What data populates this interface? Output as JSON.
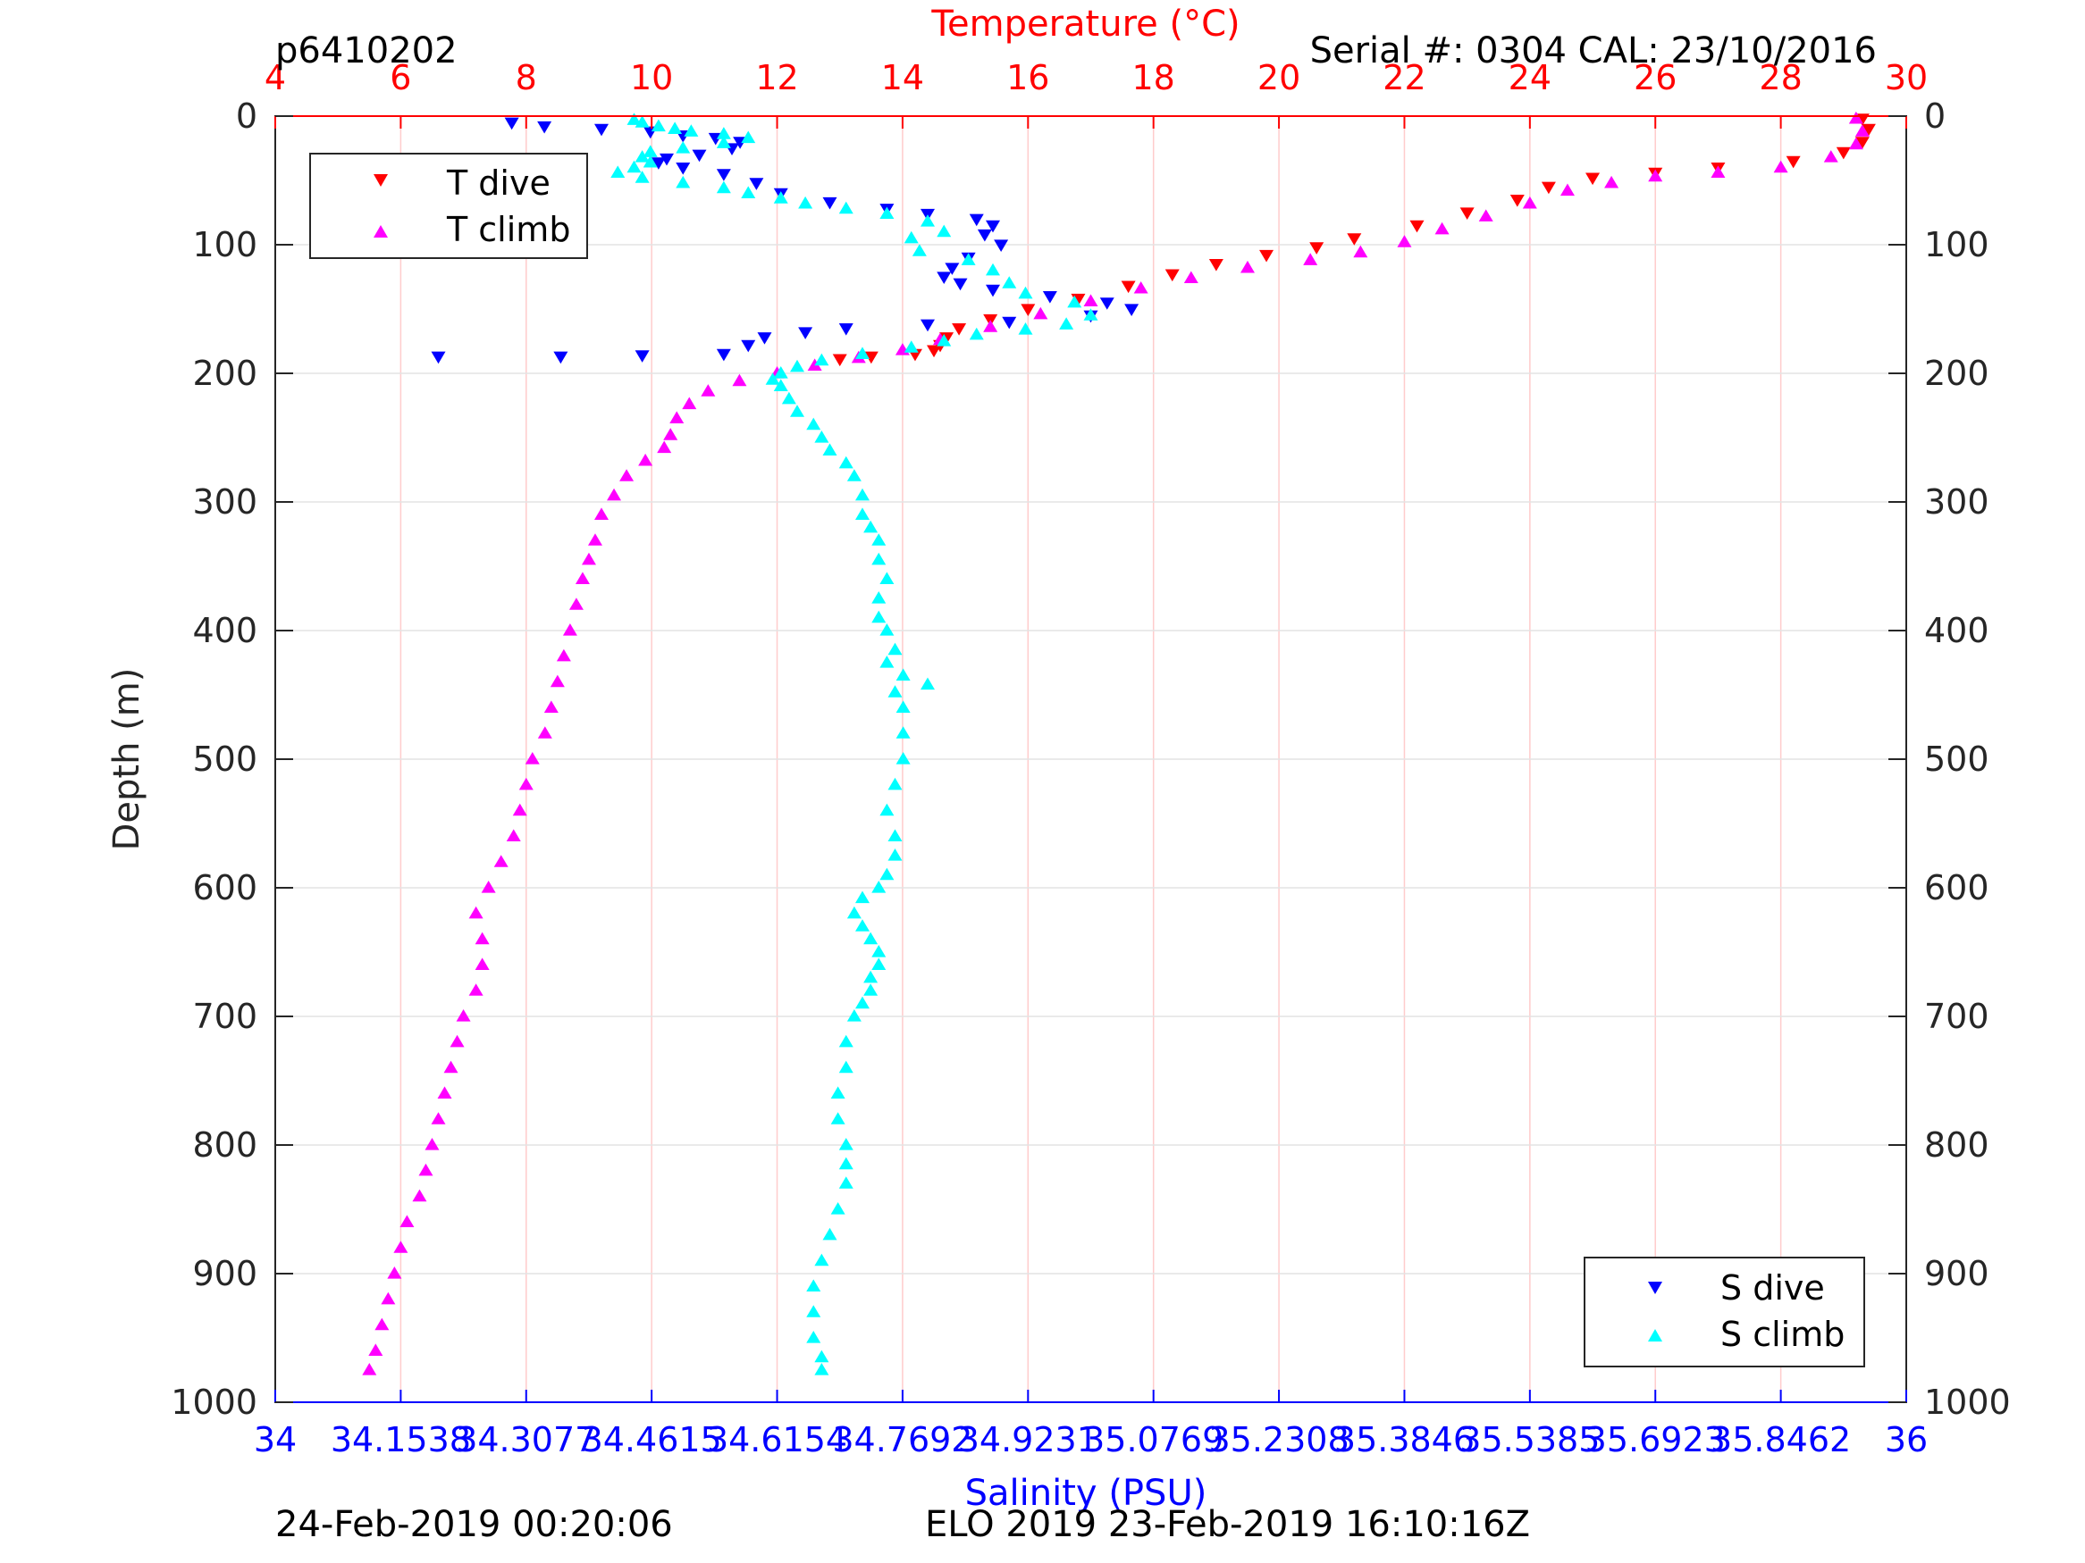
{
  "header": {
    "profile_id": "p6410202",
    "serial": "Serial #: 0304  CAL: 23/10/2016",
    "footer_left": "24-Feb-2019 00:20:06",
    "footer_right": "ELO 2019 23-Feb-2019 16:10:16Z"
  },
  "colors": {
    "t_dive": "#ff0000",
    "t_climb": "#ff00ff",
    "s_dive": "#0000ff",
    "s_climb": "#00ffff",
    "temp_axis": "#ff0000",
    "sal_axis": "#0000ff"
  },
  "chart_data": {
    "type": "scatter",
    "title": "",
    "ylabel": "Depth (m)",
    "ylim": [
      1000,
      0
    ],
    "y_reversed": true,
    "y_ticks": [
      "0",
      "100",
      "200",
      "300",
      "400",
      "500",
      "600",
      "700",
      "800",
      "900",
      "1000"
    ],
    "top_axis": {
      "label": "Temperature (°C)",
      "range": [
        4,
        30
      ],
      "ticks": [
        "4",
        "6",
        "8",
        "10",
        "12",
        "14",
        "16",
        "18",
        "20",
        "22",
        "24",
        "26",
        "28",
        "30"
      ]
    },
    "bottom_axis": {
      "label": "Salinity (PSU)",
      "range": [
        34,
        36
      ],
      "ticks": [
        "34",
        "34.1538",
        "34.3077",
        "34.4615",
        "34.6154",
        "34.7692",
        "34.9231",
        "35.0769",
        "35.2308",
        "35.3846",
        "35.5385",
        "35.6923",
        "35.8462",
        "36"
      ]
    },
    "grid": "vertical",
    "legends": [
      {
        "position": "top-left",
        "entries": [
          "T dive",
          "T climb"
        ]
      },
      {
        "position": "bottom-right",
        "entries": [
          "S dive",
          "S climb"
        ]
      }
    ],
    "series": [
      {
        "name": "T dive",
        "axis": "temperature",
        "marker": "triangle-down",
        "points": [
          [
            29.3,
            2
          ],
          [
            29.4,
            10
          ],
          [
            29.3,
            20
          ],
          [
            29.0,
            28
          ],
          [
            28.2,
            35
          ],
          [
            27.0,
            40
          ],
          [
            26.0,
            44
          ],
          [
            25.0,
            48
          ],
          [
            24.3,
            55
          ],
          [
            23.8,
            65
          ],
          [
            23.0,
            75
          ],
          [
            22.2,
            85
          ],
          [
            21.2,
            95
          ],
          [
            20.6,
            102
          ],
          [
            19.8,
            108
          ],
          [
            19.0,
            115
          ],
          [
            18.3,
            123
          ],
          [
            17.6,
            132
          ],
          [
            16.8,
            142
          ],
          [
            16.0,
            150
          ],
          [
            15.4,
            158
          ],
          [
            14.9,
            165
          ],
          [
            14.7,
            172
          ],
          [
            14.6,
            178
          ],
          [
            14.5,
            182
          ],
          [
            14.2,
            185
          ],
          [
            13.5,
            187
          ],
          [
            13.0,
            189
          ]
        ]
      },
      {
        "name": "T climb",
        "axis": "temperature",
        "marker": "triangle-up",
        "points": [
          [
            29.2,
            2
          ],
          [
            29.3,
            12
          ],
          [
            29.2,
            22
          ],
          [
            28.8,
            32
          ],
          [
            28.0,
            40
          ],
          [
            27.0,
            44
          ],
          [
            26.0,
            47
          ],
          [
            25.3,
            52
          ],
          [
            24.6,
            58
          ],
          [
            24.0,
            68
          ],
          [
            23.3,
            78
          ],
          [
            22.6,
            88
          ],
          [
            22.0,
            98
          ],
          [
            21.3,
            106
          ],
          [
            20.5,
            112
          ],
          [
            19.5,
            118
          ],
          [
            18.6,
            126
          ],
          [
            17.8,
            134
          ],
          [
            17.0,
            144
          ],
          [
            16.2,
            154
          ],
          [
            15.4,
            164
          ],
          [
            14.6,
            174
          ],
          [
            14.0,
            182
          ],
          [
            13.3,
            188
          ],
          [
            12.6,
            194
          ],
          [
            12.0,
            200
          ],
          [
            11.4,
            206
          ],
          [
            10.9,
            214
          ],
          [
            10.6,
            224
          ],
          [
            10.4,
            235
          ],
          [
            10.3,
            248
          ],
          [
            10.2,
            258
          ],
          [
            9.9,
            268
          ],
          [
            9.6,
            280
          ],
          [
            9.4,
            295
          ],
          [
            9.2,
            310
          ],
          [
            9.1,
            330
          ],
          [
            9.0,
            345
          ],
          [
            8.9,
            360
          ],
          [
            8.8,
            380
          ],
          [
            8.7,
            400
          ],
          [
            8.6,
            420
          ],
          [
            8.5,
            440
          ],
          [
            8.4,
            460
          ],
          [
            8.3,
            480
          ],
          [
            8.1,
            500
          ],
          [
            8.0,
            520
          ],
          [
            7.9,
            540
          ],
          [
            7.8,
            560
          ],
          [
            7.6,
            580
          ],
          [
            7.4,
            600
          ],
          [
            7.2,
            620
          ],
          [
            7.3,
            640
          ],
          [
            7.3,
            660
          ],
          [
            7.2,
            680
          ],
          [
            7.0,
            700
          ],
          [
            6.9,
            720
          ],
          [
            6.8,
            740
          ],
          [
            6.7,
            760
          ],
          [
            6.6,
            780
          ],
          [
            6.5,
            800
          ],
          [
            6.4,
            820
          ],
          [
            6.3,
            840
          ],
          [
            6.1,
            860
          ],
          [
            6.0,
            880
          ],
          [
            5.9,
            900
          ],
          [
            5.8,
            920
          ],
          [
            5.7,
            940
          ],
          [
            5.6,
            960
          ],
          [
            5.5,
            975
          ]
        ]
      },
      {
        "name": "S dive",
        "axis": "salinity",
        "marker": "triangle-down",
        "points": [
          [
            34.29,
            5
          ],
          [
            34.33,
            8
          ],
          [
            34.4,
            10
          ],
          [
            34.46,
            12
          ],
          [
            34.5,
            15
          ],
          [
            34.54,
            17
          ],
          [
            34.57,
            20
          ],
          [
            34.56,
            25
          ],
          [
            34.52,
            30
          ],
          [
            34.48,
            33
          ],
          [
            34.47,
            36
          ],
          [
            34.5,
            40
          ],
          [
            34.55,
            45
          ],
          [
            34.59,
            52
          ],
          [
            34.62,
            60
          ],
          [
            34.68,
            67
          ],
          [
            34.75,
            72
          ],
          [
            34.8,
            76
          ],
          [
            34.86,
            80
          ],
          [
            34.88,
            85
          ],
          [
            34.87,
            92
          ],
          [
            34.89,
            100
          ],
          [
            34.85,
            110
          ],
          [
            34.83,
            118
          ],
          [
            34.82,
            125
          ],
          [
            34.84,
            130
          ],
          [
            34.88,
            135
          ],
          [
            34.95,
            140
          ],
          [
            35.02,
            145
          ],
          [
            35.05,
            150
          ],
          [
            35.0,
            155
          ],
          [
            34.9,
            160
          ],
          [
            34.8,
            162
          ],
          [
            34.7,
            165
          ],
          [
            34.65,
            168
          ],
          [
            34.6,
            172
          ],
          [
            34.58,
            178
          ],
          [
            34.55,
            185
          ],
          [
            34.45,
            186
          ],
          [
            34.35,
            187
          ],
          [
            34.2,
            187
          ]
        ]
      },
      {
        "name": "S climb",
        "axis": "salinity",
        "marker": "triangle-up",
        "points": [
          [
            34.44,
            3
          ],
          [
            34.45,
            5
          ],
          [
            34.47,
            8
          ],
          [
            34.49,
            10
          ],
          [
            34.51,
            12
          ],
          [
            34.55,
            14
          ],
          [
            34.58,
            17
          ],
          [
            34.55,
            21
          ],
          [
            34.5,
            25
          ],
          [
            34.46,
            28
          ],
          [
            34.45,
            32
          ],
          [
            34.46,
            36
          ],
          [
            34.44,
            40
          ],
          [
            34.42,
            44
          ],
          [
            34.45,
            48
          ],
          [
            34.5,
            52
          ],
          [
            34.55,
            56
          ],
          [
            34.58,
            60
          ],
          [
            34.62,
            64
          ],
          [
            34.65,
            68
          ],
          [
            34.7,
            72
          ],
          [
            34.75,
            76
          ],
          [
            34.8,
            82
          ],
          [
            34.82,
            90
          ],
          [
            34.78,
            95
          ],
          [
            34.79,
            105
          ],
          [
            34.85,
            112
          ],
          [
            34.88,
            120
          ],
          [
            34.9,
            130
          ],
          [
            34.92,
            138
          ],
          [
            34.98,
            145
          ],
          [
            35.0,
            155
          ],
          [
            34.97,
            162
          ],
          [
            34.92,
            166
          ],
          [
            34.86,
            170
          ],
          [
            34.82,
            175
          ],
          [
            34.78,
            180
          ],
          [
            34.72,
            185
          ],
          [
            34.67,
            190
          ],
          [
            34.64,
            195
          ],
          [
            34.62,
            200
          ],
          [
            34.61,
            205
          ],
          [
            34.62,
            210
          ],
          [
            34.63,
            220
          ],
          [
            34.64,
            230
          ],
          [
            34.66,
            240
          ],
          [
            34.67,
            250
          ],
          [
            34.68,
            260
          ],
          [
            34.7,
            270
          ],
          [
            34.71,
            280
          ],
          [
            34.72,
            295
          ],
          [
            34.72,
            310
          ],
          [
            34.73,
            320
          ],
          [
            34.74,
            330
          ],
          [
            34.74,
            345
          ],
          [
            34.75,
            360
          ],
          [
            34.74,
            375
          ],
          [
            34.74,
            390
          ],
          [
            34.75,
            400
          ],
          [
            34.76,
            415
          ],
          [
            34.75,
            425
          ],
          [
            34.77,
            435
          ],
          [
            34.8,
            442
          ],
          [
            34.76,
            448
          ],
          [
            34.77,
            460
          ],
          [
            34.77,
            480
          ],
          [
            34.77,
            500
          ],
          [
            34.76,
            520
          ],
          [
            34.75,
            540
          ],
          [
            34.76,
            560
          ],
          [
            34.76,
            575
          ],
          [
            34.75,
            590
          ],
          [
            34.74,
            600
          ],
          [
            34.72,
            608
          ],
          [
            34.71,
            620
          ],
          [
            34.72,
            630
          ],
          [
            34.73,
            640
          ],
          [
            34.74,
            650
          ],
          [
            34.74,
            660
          ],
          [
            34.73,
            670
          ],
          [
            34.73,
            680
          ],
          [
            34.72,
            690
          ],
          [
            34.71,
            700
          ],
          [
            34.7,
            720
          ],
          [
            34.7,
            740
          ],
          [
            34.69,
            760
          ],
          [
            34.69,
            780
          ],
          [
            34.7,
            800
          ],
          [
            34.7,
            815
          ],
          [
            34.7,
            830
          ],
          [
            34.69,
            850
          ],
          [
            34.68,
            870
          ],
          [
            34.67,
            890
          ],
          [
            34.66,
            910
          ],
          [
            34.66,
            930
          ],
          [
            34.66,
            950
          ],
          [
            34.67,
            965
          ],
          [
            34.67,
            975
          ]
        ]
      }
    ]
  }
}
